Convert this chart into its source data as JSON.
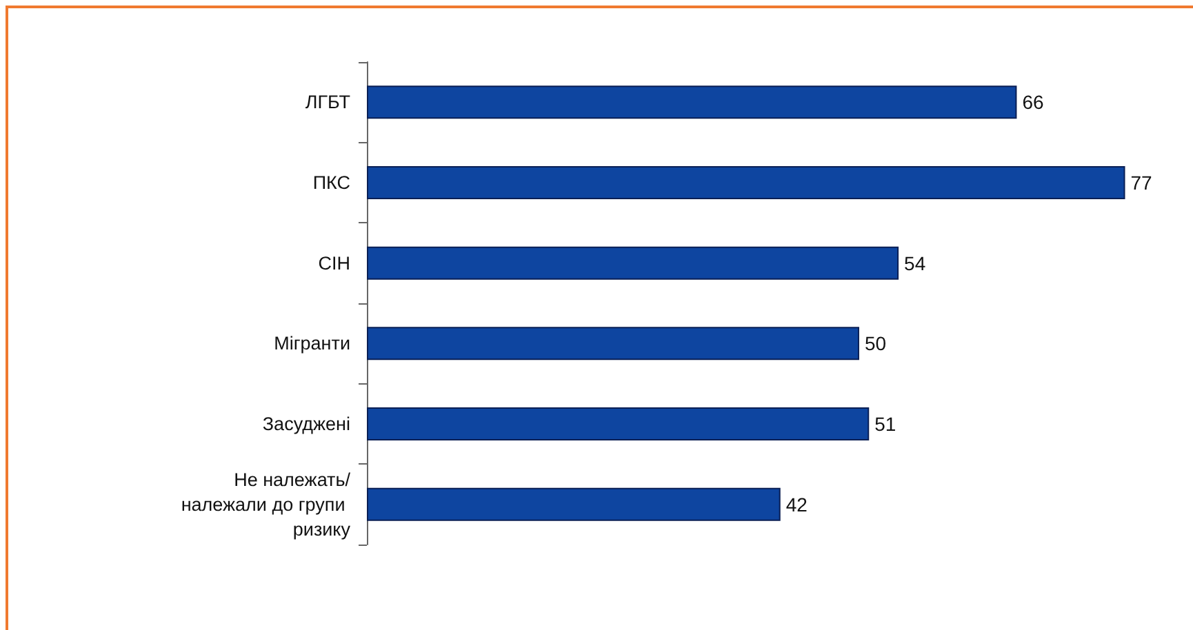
{
  "chart_data": {
    "type": "bar",
    "orientation": "horizontal",
    "categories": [
      "ЛГБТ",
      "ПКС",
      "СІН",
      "Мігранти",
      "Засуджені",
      "Не належать/належали до групи ризику"
    ],
    "values": [
      66,
      77,
      54,
      50,
      51,
      42
    ],
    "color": "#0e45a0",
    "data_labels": true
  }
}
